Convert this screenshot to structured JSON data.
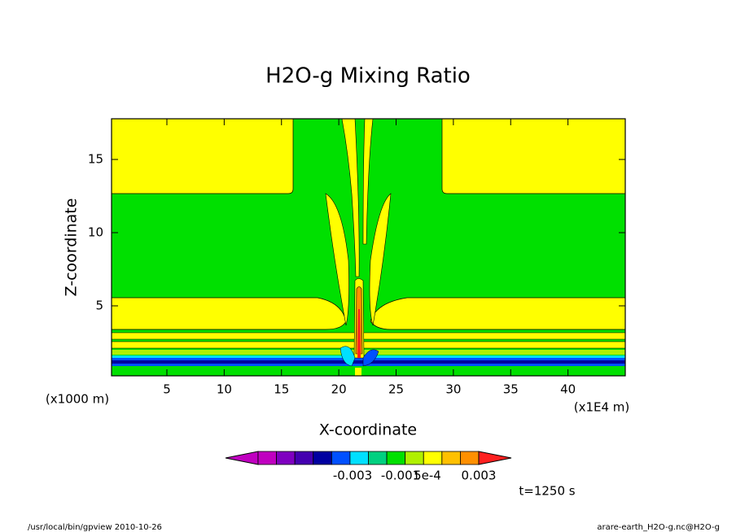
{
  "chart_data": {
    "type": "contour",
    "title": "H2O-g Mixing Ratio",
    "x_label": "X-coordinate",
    "y_label": "Z-coordinate",
    "x_unit": "(x1E4 m)",
    "y_unit": "(x1000 m)",
    "xlim": [
      0.17,
      45
    ],
    "xticks": [
      5,
      10,
      15,
      20,
      25,
      30,
      35,
      40
    ],
    "ylim": [
      0.22,
      17.78
    ],
    "yticks": [
      5,
      10,
      15
    ],
    "colorbar": {
      "colors": [
        "#c000c0",
        "#c000c0",
        "#7f00c0",
        "#4400b0",
        "#0000a0",
        "#0050ff",
        "#00e0ff",
        "#00d080",
        "#00e000",
        "#b0f000",
        "#ffff00",
        "#ffc000",
        "#ff9000",
        "#ff2020"
      ],
      "labels": [
        "-0.003",
        "-0.001",
        "5e-4",
        "0.003"
      ]
    },
    "annotation": "t=1250 s",
    "footer_left": "/usr/local/bin/gpview  2010-10-26",
    "footer_right": "arare-earth_H2O-g.nc@H2O-g"
  }
}
